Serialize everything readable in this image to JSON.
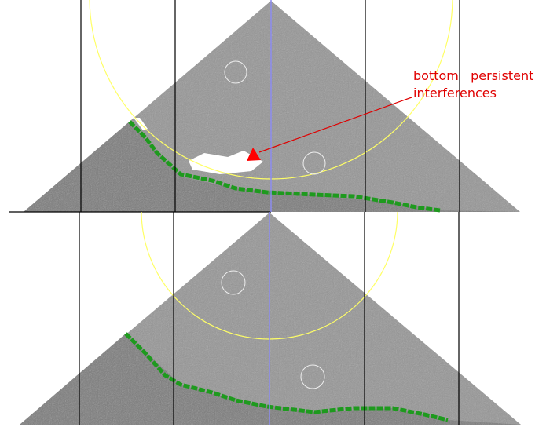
{
  "annotation": {
    "lines": [
      "bottom   persistent",
      "interferences"
    ]
  }
}
